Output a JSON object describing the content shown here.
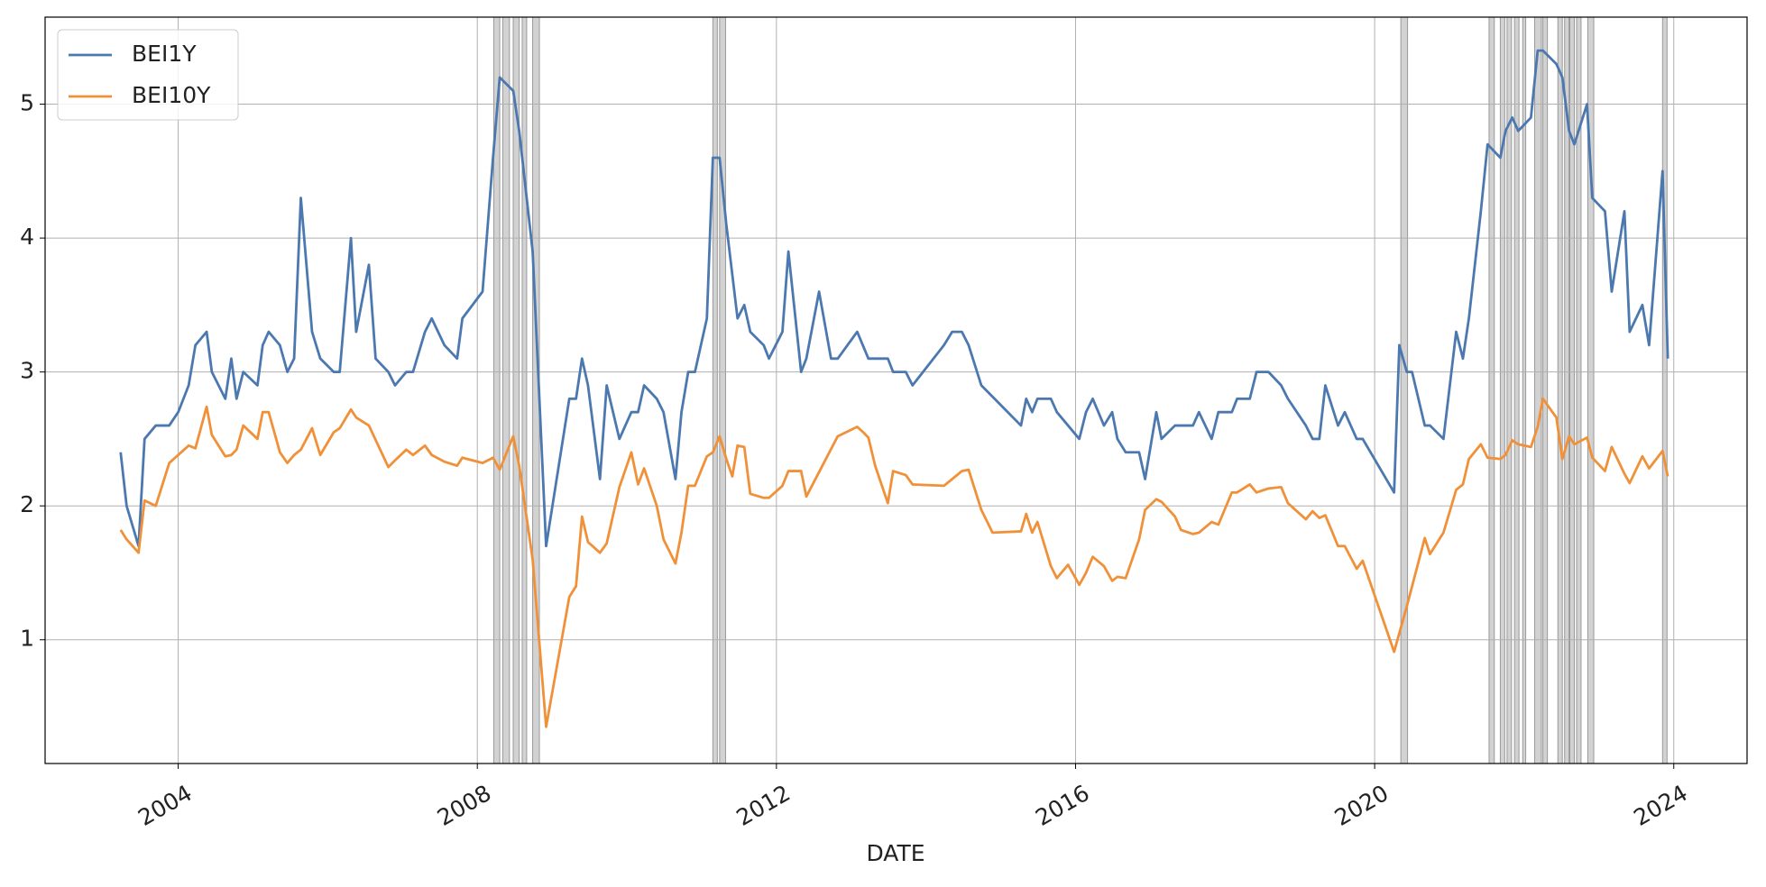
{
  "chart_data": {
    "type": "line",
    "x_label": "DATE",
    "xlim": [
      2002.22,
      2024.98
    ],
    "ylim": [
      0.076,
      5.65
    ],
    "xticks": [
      2004,
      2008,
      2012,
      2016,
      2020,
      2024
    ],
    "yticks": [
      1,
      2,
      3,
      4,
      5
    ],
    "grid": true,
    "legend": "upper left",
    "shaded_color": "#bfbfbf",
    "shaded_spans": [
      [
        2008.22,
        2008.3
      ],
      [
        2008.34,
        2008.43
      ],
      [
        2008.48,
        2008.56
      ],
      [
        2008.6,
        2008.66
      ],
      [
        2008.74,
        2008.83
      ],
      [
        2011.15,
        2011.21
      ],
      [
        2011.24,
        2011.32
      ],
      [
        2020.35,
        2020.44
      ],
      [
        2021.53,
        2021.6
      ],
      [
        2021.68,
        2021.74
      ],
      [
        2021.77,
        2021.83
      ],
      [
        2021.87,
        2021.93
      ],
      [
        2021.98,
        2022.02
      ],
      [
        2022.14,
        2022.23
      ],
      [
        2022.25,
        2022.31
      ],
      [
        2022.45,
        2022.51
      ],
      [
        2022.54,
        2022.6
      ],
      [
        2022.61,
        2022.67
      ],
      [
        2022.7,
        2022.76
      ],
      [
        2022.85,
        2022.93
      ],
      [
        2023.85,
        2023.91
      ]
    ],
    "series": [
      {
        "name": "BEI1Y",
        "color": "#4c78b0",
        "x": [
          2003.23,
          2003.31,
          2003.47,
          2003.55,
          2003.7,
          2003.88,
          2004.0,
          2004.14,
          2004.23,
          2004.38,
          2004.45,
          2004.63,
          2004.71,
          2004.78,
          2004.87,
          2005.06,
          2005.13,
          2005.21,
          2005.36,
          2005.46,
          2005.55,
          2005.64,
          2005.79,
          2005.9,
          2006.08,
          2006.16,
          2006.31,
          2006.38,
          2006.55,
          2006.64,
          2006.81,
          2006.9,
          2007.05,
          2007.14,
          2007.3,
          2007.39,
          2007.56,
          2007.73,
          2007.8,
          2008.07,
          2008.21,
          2008.3,
          2008.48,
          2008.56,
          2008.74,
          2008.92,
          2009.23,
          2009.32,
          2009.4,
          2009.48,
          2009.64,
          2009.73,
          2009.9,
          2010.06,
          2010.15,
          2010.23,
          2010.4,
          2010.49,
          2010.65,
          2010.73,
          2010.82,
          2010.91,
          2011.07,
          2011.15,
          2011.24,
          2011.33,
          2011.48,
          2011.57,
          2011.65,
          2011.83,
          2011.9,
          2012.08,
          2012.16,
          2012.33,
          2012.4,
          2012.57,
          2012.73,
          2012.82,
          2013.08,
          2013.23,
          2013.49,
          2013.56,
          2013.73,
          2013.82,
          2014.24,
          2014.35,
          2014.48,
          2014.57,
          2014.74,
          2015.27,
          2015.34,
          2015.42,
          2015.49,
          2015.67,
          2015.75,
          2016.05,
          2016.14,
          2016.23,
          2016.38,
          2016.49,
          2016.56,
          2016.67,
          2016.85,
          2016.93,
          2017.08,
          2017.15,
          2017.33,
          2017.57,
          2017.65,
          2017.82,
          2017.91,
          2018.09,
          2018.16,
          2018.33,
          2018.42,
          2018.58,
          2018.75,
          2018.84,
          2019.08,
          2019.17,
          2019.26,
          2019.34,
          2019.51,
          2019.6,
          2019.76,
          2019.84,
          2020.26,
          2020.33,
          2020.43,
          2020.5,
          2020.67,
          2020.74,
          2020.92,
          2021.09,
          2021.18,
          2021.26,
          2021.42,
          2021.51,
          2021.68,
          2021.75,
          2021.84,
          2021.92,
          2022.09,
          2022.18,
          2022.25,
          2022.43,
          2022.51,
          2022.6,
          2022.67,
          2022.84,
          2022.91,
          2023.08,
          2023.17,
          2023.34,
          2023.41,
          2023.58,
          2023.67,
          2023.85,
          2023.92
        ],
        "values": [
          2.4,
          2.0,
          1.7,
          2.5,
          2.6,
          2.6,
          2.7,
          2.9,
          3.2,
          3.3,
          3.0,
          2.8,
          3.1,
          2.8,
          3.0,
          2.9,
          3.2,
          3.3,
          3.2,
          3.0,
          3.1,
          4.3,
          3.3,
          3.1,
          3.0,
          3.0,
          4.0,
          3.3,
          3.8,
          3.1,
          3.0,
          2.9,
          3.0,
          3.0,
          3.3,
          3.4,
          3.2,
          3.1,
          3.4,
          3.6,
          4.6,
          5.2,
          5.1,
          4.8,
          3.9,
          1.7,
          2.8,
          2.8,
          3.1,
          2.9,
          2.2,
          2.9,
          2.5,
          2.7,
          2.7,
          2.9,
          2.8,
          2.7,
          2.2,
          2.7,
          3.0,
          3.0,
          3.4,
          4.6,
          4.6,
          4.1,
          3.4,
          3.5,
          3.3,
          3.2,
          3.1,
          3.3,
          3.9,
          3.0,
          3.1,
          3.6,
          3.1,
          3.1,
          3.3,
          3.1,
          3.1,
          3.0,
          3.0,
          2.9,
          3.2,
          3.3,
          3.3,
          3.2,
          2.9,
          2.6,
          2.8,
          2.7,
          2.8,
          2.8,
          2.7,
          2.5,
          2.7,
          2.8,
          2.6,
          2.7,
          2.5,
          2.4,
          2.4,
          2.2,
          2.7,
          2.5,
          2.6,
          2.6,
          2.7,
          2.5,
          2.7,
          2.7,
          2.8,
          2.8,
          3.0,
          3.0,
          2.9,
          2.8,
          2.6,
          2.5,
          2.5,
          2.9,
          2.6,
          2.7,
          2.5,
          2.5,
          2.1,
          3.2,
          3.0,
          3.0,
          2.6,
          2.6,
          2.5,
          3.3,
          3.1,
          3.4,
          4.2,
          4.7,
          4.6,
          4.8,
          4.9,
          4.8,
          4.9,
          5.4,
          5.4,
          5.3,
          5.2,
          4.8,
          4.7,
          5.0,
          4.3,
          4.2,
          3.6,
          4.2,
          3.3,
          3.5,
          3.2,
          4.5,
          3.1
        ]
      },
      {
        "name": "BEI10Y",
        "color": "#f0913a",
        "x": [
          2003.23,
          2003.31,
          2003.47,
          2003.55,
          2003.7,
          2003.88,
          2004.14,
          2004.23,
          2004.38,
          2004.45,
          2004.63,
          2004.71,
          2004.78,
          2004.87,
          2005.06,
          2005.13,
          2005.21,
          2005.36,
          2005.46,
          2005.55,
          2005.64,
          2005.79,
          2005.9,
          2006.08,
          2006.16,
          2006.31,
          2006.38,
          2006.55,
          2006.81,
          2006.9,
          2007.05,
          2007.14,
          2007.3,
          2007.39,
          2007.56,
          2007.73,
          2007.8,
          2008.07,
          2008.21,
          2008.3,
          2008.48,
          2008.56,
          2008.74,
          2008.92,
          2009.23,
          2009.32,
          2009.4,
          2009.48,
          2009.64,
          2009.73,
          2009.9,
          2010.06,
          2010.15,
          2010.23,
          2010.4,
          2010.49,
          2010.65,
          2010.73,
          2010.82,
          2010.91,
          2011.07,
          2011.15,
          2011.24,
          2011.33,
          2011.41,
          2011.48,
          2011.57,
          2011.65,
          2011.83,
          2011.9,
          2012.08,
          2012.16,
          2012.33,
          2012.4,
          2012.82,
          2013.08,
          2013.16,
          2013.23,
          2013.32,
          2013.49,
          2013.56,
          2013.73,
          2013.82,
          2014.24,
          2014.35,
          2014.48,
          2014.57,
          2014.74,
          2014.89,
          2015.27,
          2015.34,
          2015.42,
          2015.49,
          2015.67,
          2015.75,
          2015.9,
          2016.05,
          2016.14,
          2016.23,
          2016.38,
          2016.49,
          2016.56,
          2016.67,
          2016.85,
          2016.93,
          2017.08,
          2017.15,
          2017.33,
          2017.41,
          2017.57,
          2017.65,
          2017.82,
          2017.91,
          2018.09,
          2018.16,
          2018.33,
          2018.42,
          2018.58,
          2018.75,
          2018.84,
          2019.08,
          2019.17,
          2019.26,
          2019.34,
          2019.51,
          2019.6,
          2019.76,
          2019.84,
          2020.26,
          2020.43,
          2020.67,
          2020.74,
          2020.92,
          2021.09,
          2021.18,
          2021.26,
          2021.42,
          2021.51,
          2021.68,
          2021.75,
          2021.84,
          2021.92,
          2022.09,
          2022.18,
          2022.25,
          2022.43,
          2022.51,
          2022.6,
          2022.67,
          2022.84,
          2022.91,
          2023.08,
          2023.17,
          2023.34,
          2023.41,
          2023.58,
          2023.67,
          2023.85,
          2023.92
        ],
        "values": [
          1.82,
          1.75,
          1.65,
          2.04,
          2.0,
          2.32,
          2.45,
          2.43,
          2.74,
          2.53,
          2.37,
          2.38,
          2.42,
          2.6,
          2.5,
          2.7,
          2.7,
          2.4,
          2.32,
          2.38,
          2.42,
          2.58,
          2.38,
          2.55,
          2.58,
          2.72,
          2.66,
          2.6,
          2.29,
          2.34,
          2.42,
          2.38,
          2.45,
          2.38,
          2.33,
          2.3,
          2.36,
          2.32,
          2.36,
          2.27,
          2.52,
          2.3,
          1.6,
          0.35,
          1.32,
          1.4,
          1.92,
          1.73,
          1.65,
          1.72,
          2.14,
          2.4,
          2.16,
          2.28,
          2.0,
          1.75,
          1.57,
          1.8,
          2.15,
          2.15,
          2.37,
          2.4,
          2.52,
          2.35,
          2.22,
          2.45,
          2.44,
          2.09,
          2.06,
          2.06,
          2.15,
          2.26,
          2.26,
          2.07,
          2.52,
          2.59,
          2.55,
          2.51,
          2.3,
          2.02,
          2.26,
          2.23,
          2.16,
          2.15,
          2.2,
          2.26,
          2.27,
          1.97,
          1.8,
          1.81,
          1.94,
          1.8,
          1.88,
          1.55,
          1.46,
          1.56,
          1.41,
          1.5,
          1.62,
          1.55,
          1.44,
          1.47,
          1.46,
          1.75,
          1.97,
          2.05,
          2.03,
          1.92,
          1.82,
          1.79,
          1.8,
          1.88,
          1.86,
          2.1,
          2.1,
          2.16,
          2.1,
          2.13,
          2.14,
          2.02,
          1.9,
          1.96,
          1.91,
          1.93,
          1.7,
          1.7,
          1.53,
          1.59,
          0.91,
          1.25,
          1.76,
          1.64,
          1.8,
          2.12,
          2.16,
          2.35,
          2.46,
          2.36,
          2.35,
          2.38,
          2.49,
          2.46,
          2.44,
          2.59,
          2.8,
          2.66,
          2.35,
          2.52,
          2.46,
          2.51,
          2.36,
          2.26,
          2.44,
          2.24,
          2.17,
          2.37,
          2.28,
          2.41,
          2.22
        ]
      }
    ]
  }
}
